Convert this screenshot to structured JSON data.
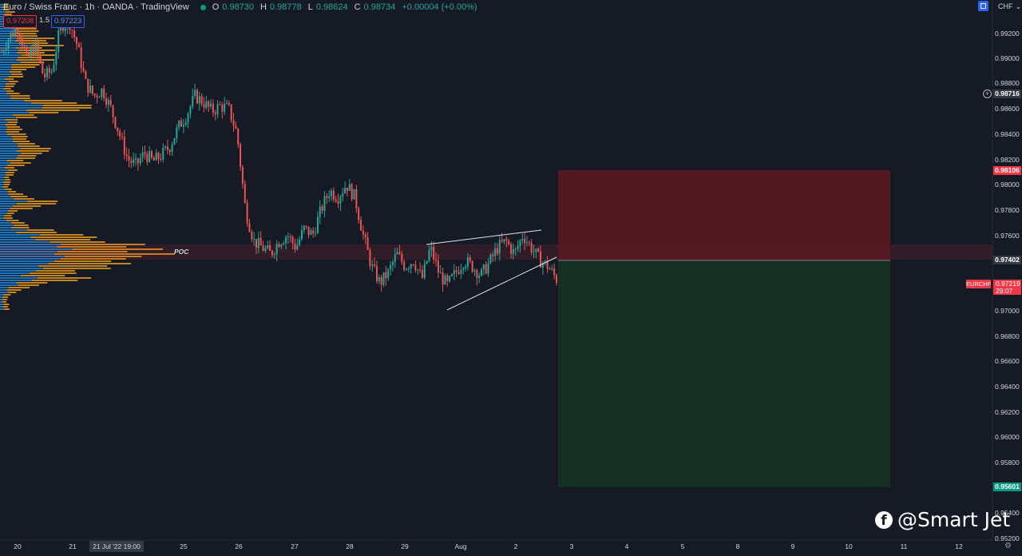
{
  "header": {
    "symbol_title": "Euro / Swiss Franc · 1h · OANDA · TradingView",
    "ohlc": {
      "o_label": "O",
      "o_value": "0.98730",
      "h_label": "H",
      "h_value": "0.98778",
      "l_label": "L",
      "l_value": "0.98624",
      "c_label": "C",
      "c_value": "0.98734",
      "change": "+0.00004 (+0.00%)"
    },
    "status_color": "#089981"
  },
  "quote": {
    "sell": "0.97208",
    "spread": "1.5",
    "buy": "0.97223"
  },
  "currency": "CHF",
  "price_axis": {
    "labels": [
      "0.99200",
      "0.99000",
      "0.98800",
      "0.98600",
      "0.98400",
      "0.98200",
      "0.98000",
      "0.97800",
      "0.97600",
      "0.97000",
      "0.96800",
      "0.96600",
      "0.96400",
      "0.96200",
      "0.96000",
      "0.95800",
      "0.95400",
      "0.95200"
    ],
    "tags": {
      "crosshair": "0.98716",
      "stop_loss": "0.98106",
      "entry": "0.97402",
      "take_profit": "0.95601"
    },
    "last": {
      "symbol": "EURCHF",
      "price": "0.97219",
      "countdown": "29:07"
    }
  },
  "time_axis": {
    "labels": [
      "20",
      "21",
      "25",
      "26",
      "27",
      "28",
      "29",
      "Aug",
      "2",
      "3",
      "4",
      "5",
      "8",
      "9",
      "10",
      "11",
      "12"
    ],
    "crosshair_tag": "21 Jul '22   19:00"
  },
  "annotations": {
    "poc_label": "POC"
  },
  "watermark": {
    "text": "@Smart Jet",
    "icon": "facebook-icon"
  },
  "colors": {
    "background": "#161a25",
    "up_candle": "#26a69a",
    "down_candle": "#ef5350",
    "volume_profile_up": "#2196f3",
    "volume_profile_down": "#f0a020",
    "stop_zone": "#f23645",
    "target_zone": "#089981"
  },
  "chart_data": {
    "type": "candlestick",
    "instrument": "EURCHF",
    "timeframe": "1h",
    "ylim": [
      0.952,
      0.993
    ],
    "x_range": [
      "20",
      "12"
    ],
    "grid": false,
    "trade_setup": {
      "side": "short",
      "entry": 0.97402,
      "stop_loss": 0.98106,
      "take_profit": 0.95601
    },
    "poc_price": 0.9745,
    "wedge": {
      "upper": [
        [
          0.9752
        ],
        [
          0.9764
        ]
      ],
      "lower": [
        [
          0.97
        ],
        [
          0.974
        ]
      ]
    },
    "close_path": [
      0.9905,
      0.9918,
      0.9925,
      0.9898,
      0.991,
      0.9885,
      0.989,
      0.9925,
      0.993,
      0.991,
      0.988,
      0.987,
      0.9875,
      0.986,
      0.984,
      0.982,
      0.9815,
      0.9825,
      0.9818,
      0.9823,
      0.983,
      0.9845,
      0.9855,
      0.987,
      0.9865,
      0.9858,
      0.9862,
      0.986,
      0.984,
      0.978,
      0.9755,
      0.975,
      0.9745,
      0.9755,
      0.976,
      0.975,
      0.9765,
      0.976,
      0.978,
      0.9795,
      0.979,
      0.98,
      0.979,
      0.976,
      0.9735,
      0.9722,
      0.973,
      0.9745,
      0.9735,
      0.974,
      0.9725,
      0.975,
      0.973,
      0.972,
      0.973,
      0.974,
      0.9735,
      0.9728,
      0.9738,
      0.975,
      0.9755,
      0.9745,
      0.976,
      0.975,
      0.974,
      0.9735,
      0.9725
    ]
  }
}
